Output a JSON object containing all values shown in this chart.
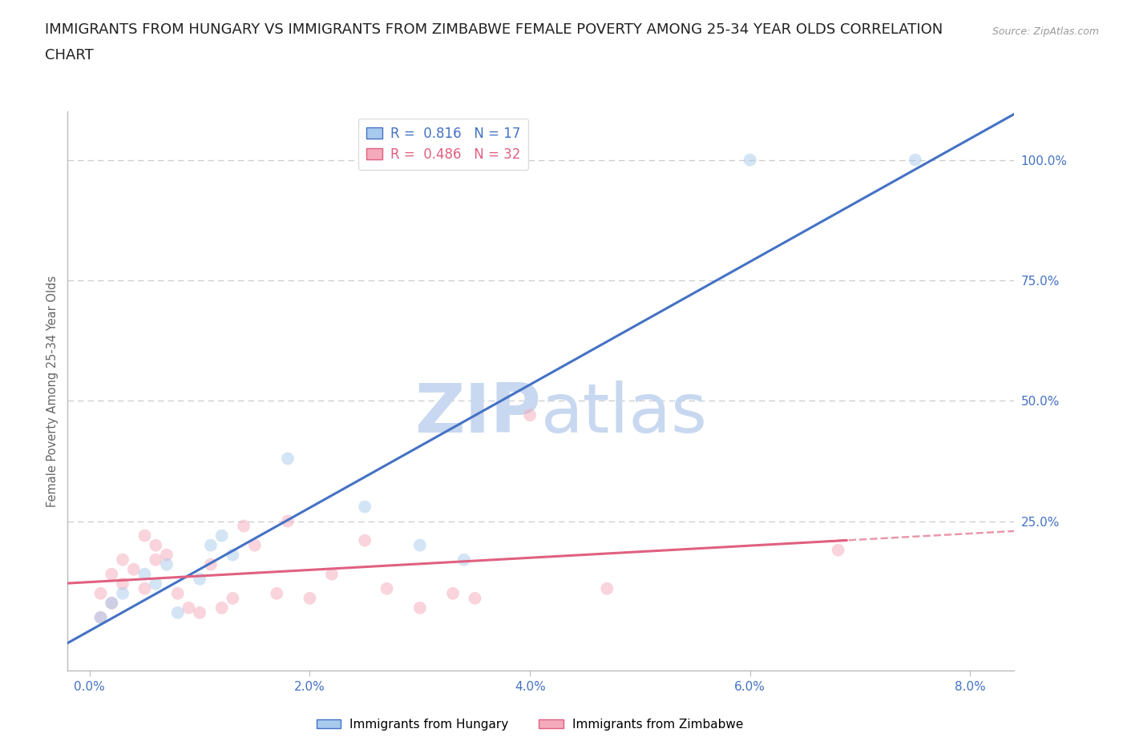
{
  "title_line1": "IMMIGRANTS FROM HUNGARY VS IMMIGRANTS FROM ZIMBABWE FEMALE POVERTY AMONG 25-34 YEAR OLDS CORRELATION",
  "title_line2": "CHART",
  "source": "Source: ZipAtlas.com",
  "ylabel": "Female Poverty Among 25-34 Year Olds",
  "xlabel_ticks": [
    "0.0%",
    "2.0%",
    "4.0%",
    "6.0%",
    "8.0%"
  ],
  "xlabel_vals": [
    0.0,
    0.02,
    0.04,
    0.06,
    0.08
  ],
  "ylabel_ticks": [
    "25.0%",
    "50.0%",
    "75.0%",
    "100.0%"
  ],
  "ylabel_vals": [
    0.25,
    0.5,
    0.75,
    1.0
  ],
  "hungary_color": "#A8CAEC",
  "zimbabwe_color": "#F4AABB",
  "hungary_line_color": "#4472C4",
  "zimbabwe_line_color": "#E06080",
  "hungary_R": 0.816,
  "hungary_N": 17,
  "zimbabwe_R": 0.486,
  "zimbabwe_N": 32,
  "watermark_zip": "ZIP",
  "watermark_atlas": "atlas",
  "watermark_color": "#C8D8F0",
  "hungary_x": [
    0.001,
    0.002,
    0.003,
    0.005,
    0.006,
    0.007,
    0.008,
    0.01,
    0.011,
    0.012,
    0.013,
    0.018,
    0.025,
    0.03,
    0.034,
    0.06,
    0.075
  ],
  "hungary_y": [
    0.05,
    0.08,
    0.1,
    0.14,
    0.12,
    0.16,
    0.06,
    0.13,
    0.2,
    0.22,
    0.18,
    0.38,
    0.28,
    0.2,
    0.17,
    1.0,
    1.0
  ],
  "zimbabwe_x": [
    0.001,
    0.001,
    0.002,
    0.002,
    0.003,
    0.003,
    0.004,
    0.005,
    0.005,
    0.006,
    0.006,
    0.007,
    0.008,
    0.009,
    0.01,
    0.011,
    0.012,
    0.013,
    0.014,
    0.015,
    0.017,
    0.018,
    0.02,
    0.022,
    0.025,
    0.027,
    0.03,
    0.033,
    0.035,
    0.04,
    0.047,
    0.068
  ],
  "zimbabwe_y": [
    0.05,
    0.1,
    0.08,
    0.14,
    0.12,
    0.17,
    0.15,
    0.11,
    0.22,
    0.2,
    0.17,
    0.18,
    0.1,
    0.07,
    0.06,
    0.16,
    0.07,
    0.09,
    0.24,
    0.2,
    0.1,
    0.25,
    0.09,
    0.14,
    0.21,
    0.11,
    0.07,
    0.1,
    0.09,
    0.47,
    0.11,
    0.19
  ],
  "background_color": "#FFFFFF",
  "axis_color": "#BBBBBB",
  "grid_color": "#CCCCCC",
  "tick_color": "#4472C4",
  "title_color": "#222222",
  "title_fontsize": 13,
  "marker_size": 130,
  "marker_alpha": 0.5,
  "ylim_min": -0.06,
  "ylim_max": 1.1,
  "xlim_min": -0.002,
  "xlim_max": 0.084
}
